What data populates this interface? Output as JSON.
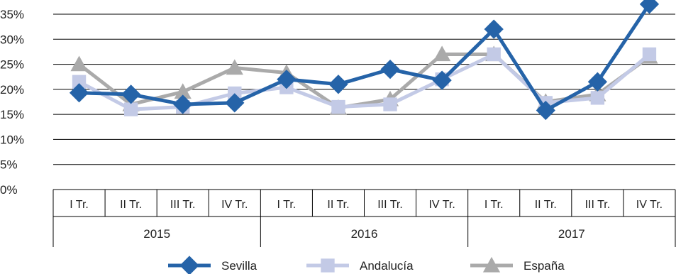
{
  "chart_data": {
    "type": "line",
    "y_ticks": [
      "0%",
      "5%",
      "10%",
      "15%",
      "20%",
      "25%",
      "30%",
      "35%"
    ],
    "ylim": [
      0,
      35
    ],
    "grid": true,
    "categories": [
      "I Tr.",
      "II Tr.",
      "III Tr.",
      "IV Tr.",
      "I Tr.",
      "II Tr.",
      "III Tr.",
      "IV Tr.",
      "I Tr.",
      "II Tr.",
      "III Tr.",
      "IV Tr."
    ],
    "groups": [
      {
        "label": "2015",
        "span": 4
      },
      {
        "label": "2016",
        "span": 4
      },
      {
        "label": "2017",
        "span": 4
      }
    ],
    "legend_position": "bottom",
    "series": [
      {
        "name": "Sevilla",
        "color": "#2563a8",
        "marker": "diamond",
        "values": [
          19.3,
          19.0,
          17.0,
          17.3,
          22.0,
          21.0,
          24.0,
          21.8,
          32.0,
          15.8,
          21.5,
          37.0
        ]
      },
      {
        "name": "Andalucía",
        "color": "#c3cae6",
        "marker": "square",
        "values": [
          21.5,
          16.0,
          16.5,
          19.2,
          20.4,
          16.5,
          17.0,
          22.0,
          27.0,
          17.3,
          18.3,
          27.0
        ]
      },
      {
        "name": "España",
        "color": "#aaaaaa",
        "marker": "triangle",
        "values": [
          25.0,
          17.0,
          19.5,
          24.3,
          23.3,
          16.3,
          18.0,
          27.0,
          27.0,
          17.5,
          19.0,
          26.5
        ]
      }
    ]
  }
}
